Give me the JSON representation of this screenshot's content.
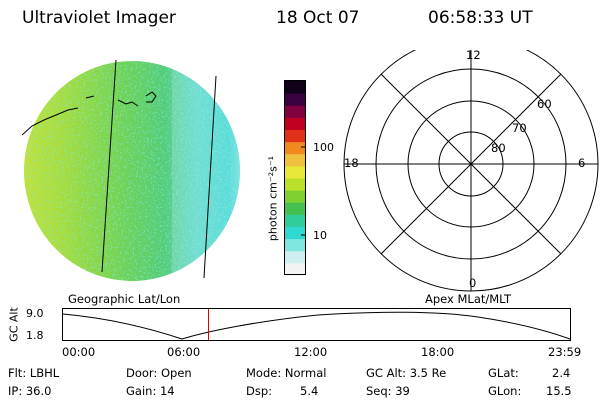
{
  "header": {
    "instrument": "Ultraviolet Imager",
    "date": "18 Oct 07",
    "time": "06:58:33 UT"
  },
  "colorbar": {
    "unit_label": "photon cm⁻²s⁻¹",
    "tick_100": "100",
    "tick_10": "10",
    "colors": [
      "#f3f3f3",
      "#cfeef0",
      "#7fe6e0",
      "#2fd8d0",
      "#30cc9a",
      "#44c050",
      "#7ed030",
      "#bbe02a",
      "#e8e83a",
      "#f0c040",
      "#f08a20",
      "#e0301a",
      "#c00020",
      "#800040",
      "#3a0040",
      "#10001a"
    ]
  },
  "polar_plot": {
    "labels": {
      "mlt_12": "12",
      "mlt_18": "18",
      "mlt_6": "6",
      "mlt_0": "0",
      "lat_60": "60",
      "lat_70": "70",
      "lat_80": "80"
    }
  },
  "left_caption": "Geographic Lat/Lon",
  "right_caption": "Apex MLat/MLT",
  "timeline": {
    "axis_label": "GC Alt",
    "y_top": "9.0",
    "y_bottom": "1.8",
    "x_ticks": [
      "00:00",
      "06:00",
      "12:00",
      "18:00",
      "23:59"
    ],
    "marker_color": "#e00000"
  },
  "info": {
    "flt": "Flt: LBHL",
    "ip": "IP: 36.0",
    "door": "Door: Open",
    "gain": "Gain: 14",
    "mode": "Mode: Normal",
    "dsp_label": "Dsp:",
    "dsp_value": "5.4",
    "gc_alt": "GC Alt: 3.5 Re",
    "seq": "Seq: 39",
    "glat_label": "GLat:",
    "glat_value": "2.4",
    "glon_label": "GLon:",
    "glon_value": "15.5"
  }
}
